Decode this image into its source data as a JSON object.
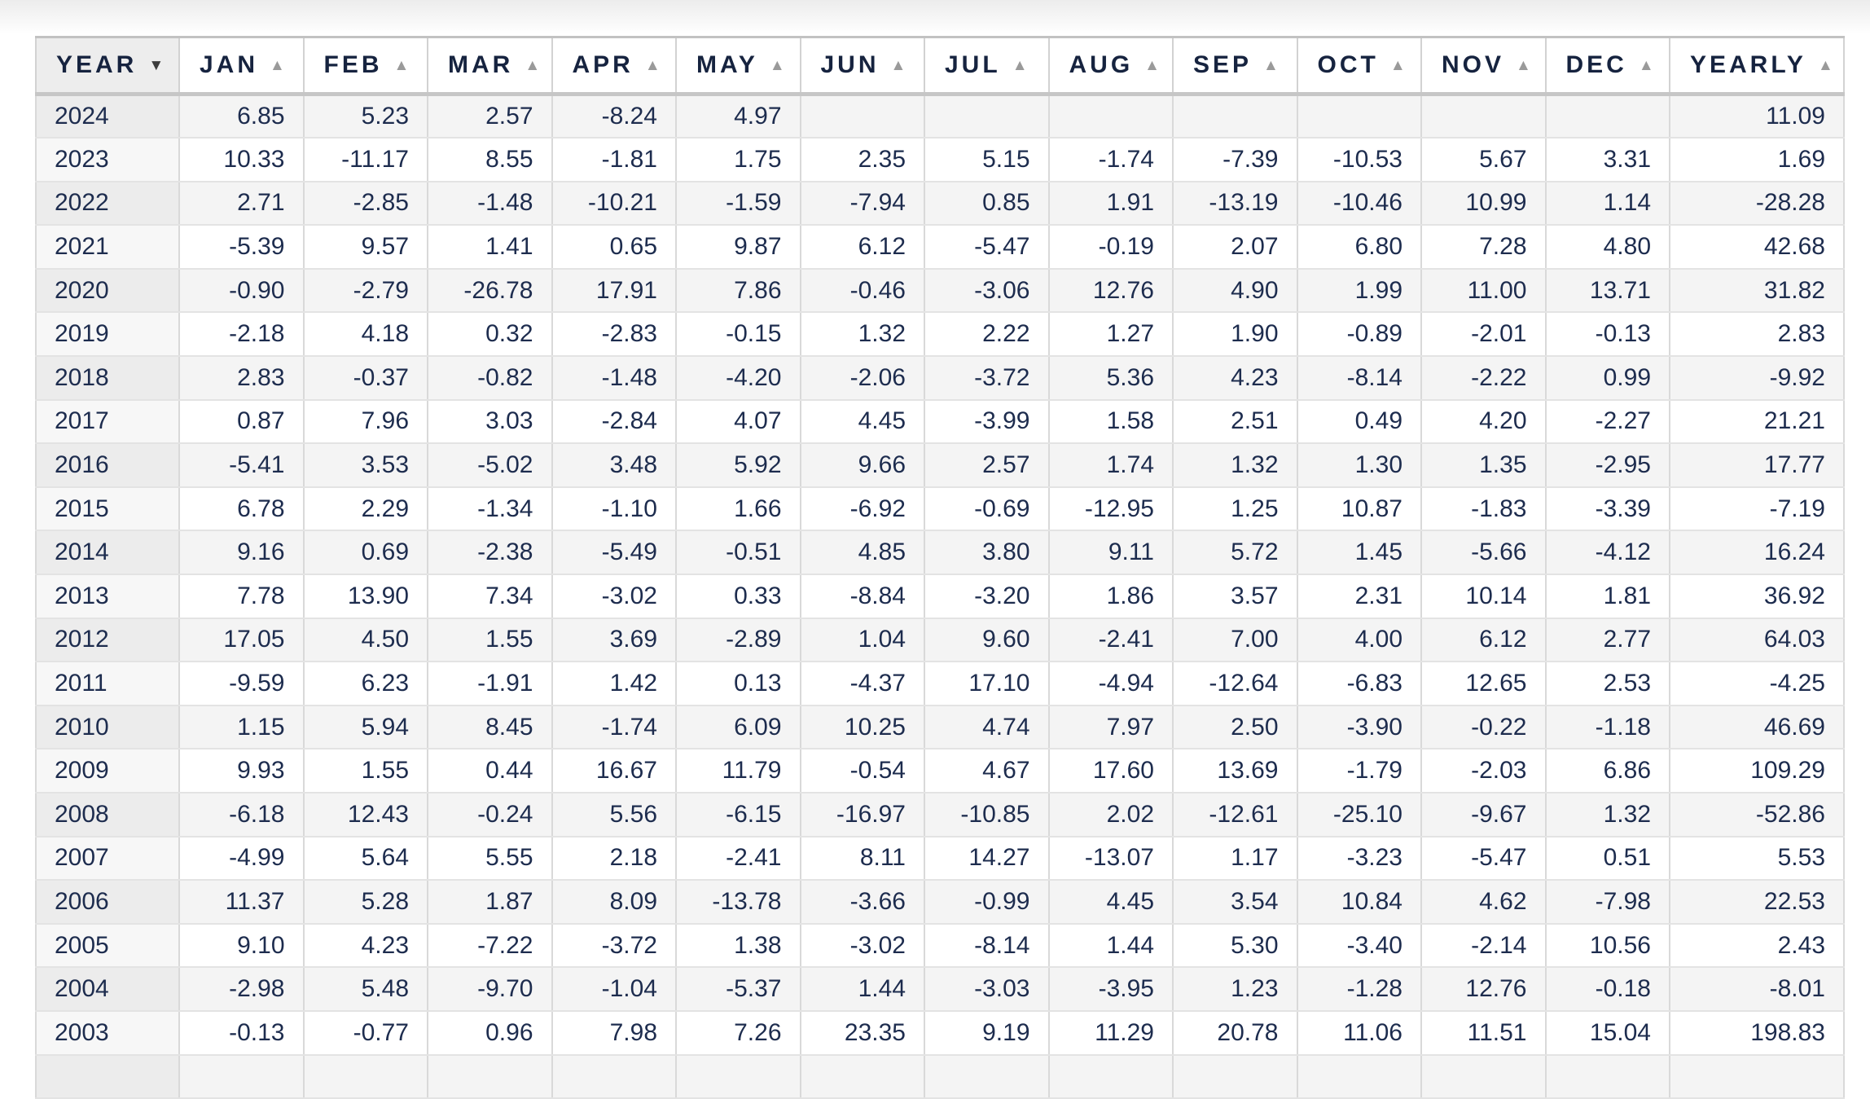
{
  "colors": {
    "text_navy": "#1d2c4e",
    "header_text": "#16233f",
    "stripe_row_bg": "#f4f4f4",
    "year_column_bg_white_row": "#f7f7f7",
    "year_column_bg_striped_row": "#ececec",
    "year_header_bg": "#ededed",
    "grid_line": "#d9d9d9",
    "header_separator": "#c6c6c6",
    "sort_asc_icon_color": "#9a9a9a",
    "sort_desc_icon_color": "#3c3c3c"
  },
  "icons": {
    "sort_asc": "▲",
    "sort_desc": "▼"
  },
  "table": {
    "columns": [
      {
        "label": "YEAR",
        "sort": "desc"
      },
      {
        "label": "JAN",
        "sort": "asc"
      },
      {
        "label": "FEB",
        "sort": "asc"
      },
      {
        "label": "MAR",
        "sort": "asc"
      },
      {
        "label": "APR",
        "sort": "asc"
      },
      {
        "label": "MAY",
        "sort": "asc"
      },
      {
        "label": "JUN",
        "sort": "asc"
      },
      {
        "label": "JUL",
        "sort": "asc"
      },
      {
        "label": "AUG",
        "sort": "asc"
      },
      {
        "label": "SEP",
        "sort": "asc"
      },
      {
        "label": "OCT",
        "sort": "asc"
      },
      {
        "label": "NOV",
        "sort": "asc"
      },
      {
        "label": "DEC",
        "sort": "asc"
      },
      {
        "label": "YEARLY",
        "sort": "asc"
      }
    ],
    "rows": [
      {
        "year": "2024",
        "values": [
          "6.85",
          "5.23",
          "2.57",
          "-8.24",
          "4.97",
          "",
          "",
          "",
          "",
          "",
          "",
          "",
          "11.09"
        ]
      },
      {
        "year": "2023",
        "values": [
          "10.33",
          "-11.17",
          "8.55",
          "-1.81",
          "1.75",
          "2.35",
          "5.15",
          "-1.74",
          "-7.39",
          "-10.53",
          "5.67",
          "3.31",
          "1.69"
        ]
      },
      {
        "year": "2022",
        "values": [
          "2.71",
          "-2.85",
          "-1.48",
          "-10.21",
          "-1.59",
          "-7.94",
          "0.85",
          "1.91",
          "-13.19",
          "-10.46",
          "10.99",
          "1.14",
          "-28.28"
        ]
      },
      {
        "year": "2021",
        "values": [
          "-5.39",
          "9.57",
          "1.41",
          "0.65",
          "9.87",
          "6.12",
          "-5.47",
          "-0.19",
          "2.07",
          "6.80",
          "7.28",
          "4.80",
          "42.68"
        ]
      },
      {
        "year": "2020",
        "values": [
          "-0.90",
          "-2.79",
          "-26.78",
          "17.91",
          "7.86",
          "-0.46",
          "-3.06",
          "12.76",
          "4.90",
          "1.99",
          "11.00",
          "13.71",
          "31.82"
        ]
      },
      {
        "year": "2019",
        "values": [
          "-2.18",
          "4.18",
          "0.32",
          "-2.83",
          "-0.15",
          "1.32",
          "2.22",
          "1.27",
          "1.90",
          "-0.89",
          "-2.01",
          "-0.13",
          "2.83"
        ]
      },
      {
        "year": "2018",
        "values": [
          "2.83",
          "-0.37",
          "-0.82",
          "-1.48",
          "-4.20",
          "-2.06",
          "-3.72",
          "5.36",
          "4.23",
          "-8.14",
          "-2.22",
          "0.99",
          "-9.92"
        ]
      },
      {
        "year": "2017",
        "values": [
          "0.87",
          "7.96",
          "3.03",
          "-2.84",
          "4.07",
          "4.45",
          "-3.99",
          "1.58",
          "2.51",
          "0.49",
          "4.20",
          "-2.27",
          "21.21"
        ]
      },
      {
        "year": "2016",
        "values": [
          "-5.41",
          "3.53",
          "-5.02",
          "3.48",
          "5.92",
          "9.66",
          "2.57",
          "1.74",
          "1.32",
          "1.30",
          "1.35",
          "-2.95",
          "17.77"
        ]
      },
      {
        "year": "2015",
        "values": [
          "6.78",
          "2.29",
          "-1.34",
          "-1.10",
          "1.66",
          "-6.92",
          "-0.69",
          "-12.95",
          "1.25",
          "10.87",
          "-1.83",
          "-3.39",
          "-7.19"
        ]
      },
      {
        "year": "2014",
        "values": [
          "9.16",
          "0.69",
          "-2.38",
          "-5.49",
          "-0.51",
          "4.85",
          "3.80",
          "9.11",
          "5.72",
          "1.45",
          "-5.66",
          "-4.12",
          "16.24"
        ]
      },
      {
        "year": "2013",
        "values": [
          "7.78",
          "13.90",
          "7.34",
          "-3.02",
          "0.33",
          "-8.84",
          "-3.20",
          "1.86",
          "3.57",
          "2.31",
          "10.14",
          "1.81",
          "36.92"
        ]
      },
      {
        "year": "2012",
        "values": [
          "17.05",
          "4.50",
          "1.55",
          "3.69",
          "-2.89",
          "1.04",
          "9.60",
          "-2.41",
          "7.00",
          "4.00",
          "6.12",
          "2.77",
          "64.03"
        ]
      },
      {
        "year": "2011",
        "values": [
          "-9.59",
          "6.23",
          "-1.91",
          "1.42",
          "0.13",
          "-4.37",
          "17.10",
          "-4.94",
          "-12.64",
          "-6.83",
          "12.65",
          "2.53",
          "-4.25"
        ]
      },
      {
        "year": "2010",
        "values": [
          "1.15",
          "5.94",
          "8.45",
          "-1.74",
          "6.09",
          "10.25",
          "4.74",
          "7.97",
          "2.50",
          "-3.90",
          "-0.22",
          "-1.18",
          "46.69"
        ]
      },
      {
        "year": "2009",
        "values": [
          "9.93",
          "1.55",
          "0.44",
          "16.67",
          "11.79",
          "-0.54",
          "4.67",
          "17.60",
          "13.69",
          "-1.79",
          "-2.03",
          "6.86",
          "109.29"
        ]
      },
      {
        "year": "2008",
        "values": [
          "-6.18",
          "12.43",
          "-0.24",
          "5.56",
          "-6.15",
          "-16.97",
          "-10.85",
          "2.02",
          "-12.61",
          "-25.10",
          "-9.67",
          "1.32",
          "-52.86"
        ]
      },
      {
        "year": "2007",
        "values": [
          "-4.99",
          "5.64",
          "5.55",
          "2.18",
          "-2.41",
          "8.11",
          "14.27",
          "-13.07",
          "1.17",
          "-3.23",
          "-5.47",
          "0.51",
          "5.53"
        ]
      },
      {
        "year": "2006",
        "values": [
          "11.37",
          "5.28",
          "1.87",
          "8.09",
          "-13.78",
          "-3.66",
          "-0.99",
          "4.45",
          "3.54",
          "10.84",
          "4.62",
          "-7.98",
          "22.53"
        ]
      },
      {
        "year": "2005",
        "values": [
          "9.10",
          "4.23",
          "-7.22",
          "-3.72",
          "1.38",
          "-3.02",
          "-8.14",
          "1.44",
          "5.30",
          "-3.40",
          "-2.14",
          "10.56",
          "2.43"
        ]
      },
      {
        "year": "2004",
        "values": [
          "-2.98",
          "5.48",
          "-9.70",
          "-1.04",
          "-5.37",
          "1.44",
          "-3.03",
          "-3.95",
          "1.23",
          "-1.28",
          "12.76",
          "-0.18",
          "-8.01"
        ]
      },
      {
        "year": "2003",
        "values": [
          "-0.13",
          "-0.77",
          "0.96",
          "7.98",
          "7.26",
          "23.35",
          "9.19",
          "11.29",
          "20.78",
          "11.06",
          "11.51",
          "15.04",
          "198.83"
        ]
      }
    ],
    "partial_next_row_visible": true
  }
}
